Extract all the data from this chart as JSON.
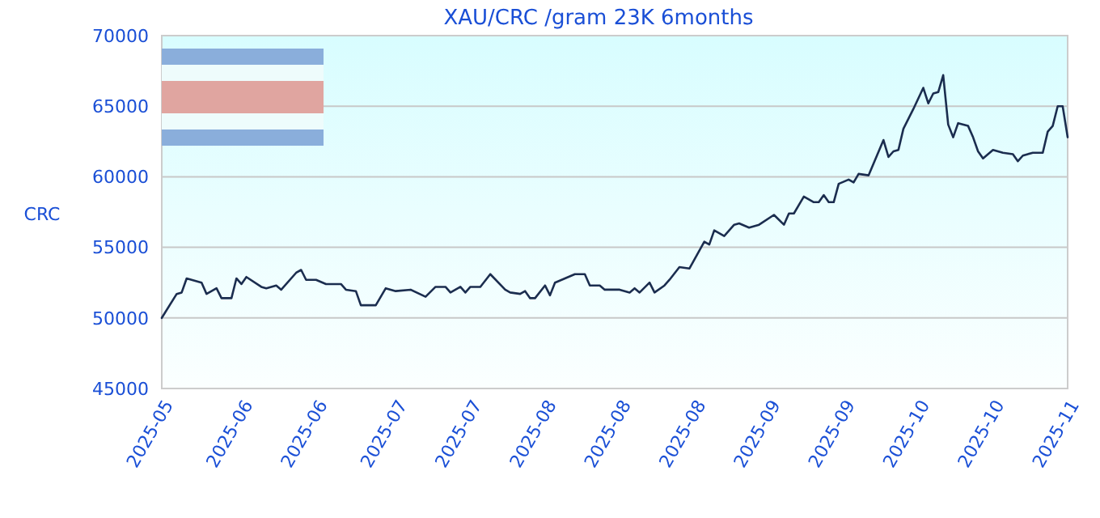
{
  "chart_data": {
    "type": "line",
    "title": "XAU/CRC /gram 23K 6months",
    "ylabel": "CRC",
    "x": [
      "2025-05-16",
      "2025-05-19",
      "2025-05-20",
      "2025-05-21",
      "2025-05-24",
      "2025-05-25",
      "2025-05-27",
      "2025-05-28",
      "2025-05-30",
      "2025-05-31",
      "2025-06-01",
      "2025-06-02",
      "2025-06-05",
      "2025-06-06",
      "2025-06-08",
      "2025-06-09",
      "2025-06-12",
      "2025-06-13",
      "2025-06-14",
      "2025-06-16",
      "2025-06-18",
      "2025-06-21",
      "2025-06-22",
      "2025-06-24",
      "2025-06-25",
      "2025-06-28",
      "2025-06-30",
      "2025-07-02",
      "2025-07-05",
      "2025-07-08",
      "2025-07-10",
      "2025-07-12",
      "2025-07-13",
      "2025-07-15",
      "2025-07-16",
      "2025-07-17",
      "2025-07-19",
      "2025-07-21",
      "2025-07-24",
      "2025-07-25",
      "2025-07-27",
      "2025-07-28",
      "2025-07-29",
      "2025-07-30",
      "2025-08-01",
      "2025-08-02",
      "2025-08-03",
      "2025-08-05",
      "2025-08-07",
      "2025-08-09",
      "2025-08-10",
      "2025-08-12",
      "2025-08-13",
      "2025-08-16",
      "2025-08-18",
      "2025-08-19",
      "2025-08-20",
      "2025-08-22",
      "2025-08-23",
      "2025-08-25",
      "2025-08-26",
      "2025-08-28",
      "2025-08-30",
      "2025-09-02",
      "2025-09-03",
      "2025-09-04",
      "2025-09-06",
      "2025-09-08",
      "2025-09-09",
      "2025-09-11",
      "2025-09-13",
      "2025-09-16",
      "2025-09-18",
      "2025-09-19",
      "2025-09-20",
      "2025-09-22",
      "2025-09-24",
      "2025-09-25",
      "2025-09-26",
      "2025-09-27",
      "2025-09-28",
      "2025-09-29",
      "2025-10-01",
      "2025-10-02",
      "2025-10-03",
      "2025-10-05",
      "2025-10-08",
      "2025-10-09",
      "2025-10-10",
      "2025-10-11",
      "2025-10-12",
      "2025-10-14",
      "2025-10-16",
      "2025-10-17",
      "2025-10-18",
      "2025-10-19",
      "2025-10-20",
      "2025-10-21",
      "2025-10-22",
      "2025-10-23",
      "2025-10-25",
      "2025-10-26",
      "2025-10-27",
      "2025-10-28",
      "2025-10-30",
      "2025-11-01",
      "2025-11-03",
      "2025-11-04",
      "2025-11-05",
      "2025-11-07",
      "2025-11-09",
      "2025-11-10",
      "2025-11-11",
      "2025-11-12",
      "2025-11-13",
      "2025-11-14"
    ],
    "series": [
      {
        "color": "#1b2d4f",
        "values": [
          50000,
          51700,
          51800,
          52800,
          52500,
          51700,
          52100,
          51400,
          51400,
          52800,
          52400,
          52900,
          52200,
          52100,
          52300,
          52000,
          53200,
          53400,
          52700,
          52700,
          52400,
          52400,
          52000,
          51900,
          50900,
          50900,
          52100,
          51900,
          52000,
          51500,
          52200,
          52200,
          51800,
          52200,
          51800,
          52200,
          52200,
          53100,
          52000,
          51800,
          51700,
          51900,
          51400,
          51400,
          52300,
          51600,
          52500,
          52800,
          53100,
          53100,
          52300,
          52300,
          52000,
          52000,
          51800,
          52100,
          51800,
          52500,
          51800,
          52300,
          52700,
          53600,
          53500,
          55400,
          55200,
          56200,
          55800,
          56600,
          56700,
          56400,
          56600,
          57300,
          56600,
          57400,
          57400,
          58600,
          58200,
          58200,
          58700,
          58200,
          58200,
          59500,
          59800,
          59600,
          60200,
          60100,
          62600,
          61400,
          61800,
          61900,
          63400,
          64800,
          66300,
          65200,
          65900,
          66000,
          67200,
          63700,
          62800,
          63800,
          63600,
          62800,
          61800,
          61300,
          61900,
          61700,
          61600,
          61100,
          61500,
          61700,
          61700,
          63200,
          63600,
          65000,
          65000,
          62800
        ]
      }
    ],
    "xlim": [
      "2025-05-16",
      "2025-11-14"
    ],
    "xticks": [
      {
        "value": "2025-05-16",
        "label": "2025-05"
      },
      {
        "value": "2025-06-01",
        "label": "2025-06"
      },
      {
        "value": "2025-06-16",
        "label": "2025-06"
      },
      {
        "value": "2025-07-02",
        "label": "2025-07"
      },
      {
        "value": "2025-07-17",
        "label": "2025-07"
      },
      {
        "value": "2025-08-01",
        "label": "2025-08"
      },
      {
        "value": "2025-08-16",
        "label": "2025-08"
      },
      {
        "value": "2025-08-31",
        "label": "2025-08"
      },
      {
        "value": "2025-09-15",
        "label": "2025-09"
      },
      {
        "value": "2025-09-30",
        "label": "2025-09"
      },
      {
        "value": "2025-10-15",
        "label": "2025-10"
      },
      {
        "value": "2025-10-30",
        "label": "2025-10"
      },
      {
        "value": "2025-11-14",
        "label": "2025-11"
      }
    ],
    "ylim": [
      45000,
      70000
    ],
    "yticks": [
      45000,
      50000,
      55000,
      60000,
      65000,
      70000
    ],
    "grid": "y",
    "marker": "none",
    "line_style": "solid"
  }
}
